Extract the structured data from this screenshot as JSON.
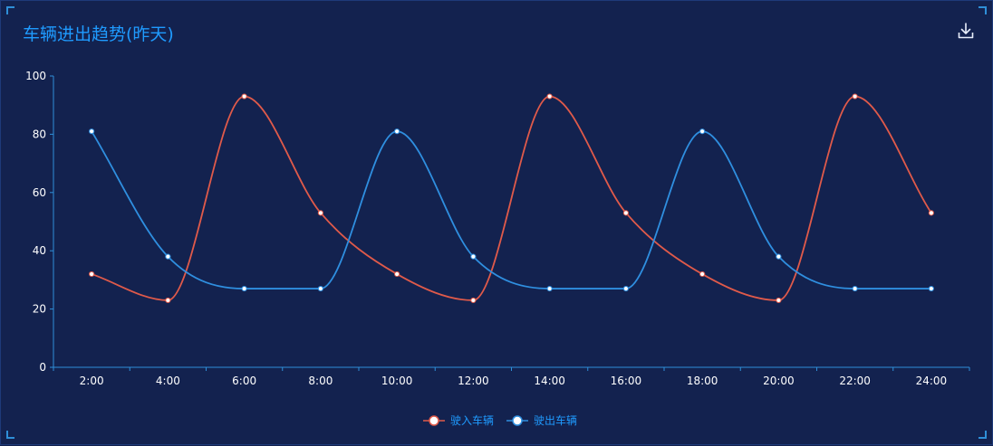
{
  "panel": {
    "title": "车辆进出趋势(昨天)",
    "download_icon": "download-icon"
  },
  "colors": {
    "background": "#13224f",
    "title": "#1f9bff",
    "axis": "#2f8fd8",
    "entering": "#e05a4a",
    "exiting": "#2f8fe0"
  },
  "chart_data": {
    "type": "line",
    "smooth": true,
    "title": "车辆进出趋势(昨天)",
    "categories": [
      "2:00",
      "4:00",
      "6:00",
      "8:00",
      "10:00",
      "12:00",
      "14:00",
      "16:00",
      "18:00",
      "20:00",
      "22:00",
      "24:00"
    ],
    "ylim": [
      0,
      100
    ],
    "yticks": [
      0,
      20,
      40,
      60,
      80,
      100
    ],
    "grid": false,
    "legend_position": "bottom-center",
    "series": [
      {
        "name": "驶入车辆",
        "color": "#e05a4a",
        "values": [
          32,
          23,
          93,
          53,
          32,
          23,
          93,
          53,
          32,
          23,
          93,
          53
        ]
      },
      {
        "name": "驶出车辆",
        "color": "#2f8fe0",
        "values": [
          81,
          38,
          27,
          27,
          81,
          38,
          27,
          27,
          81,
          38,
          27,
          27
        ]
      }
    ]
  }
}
